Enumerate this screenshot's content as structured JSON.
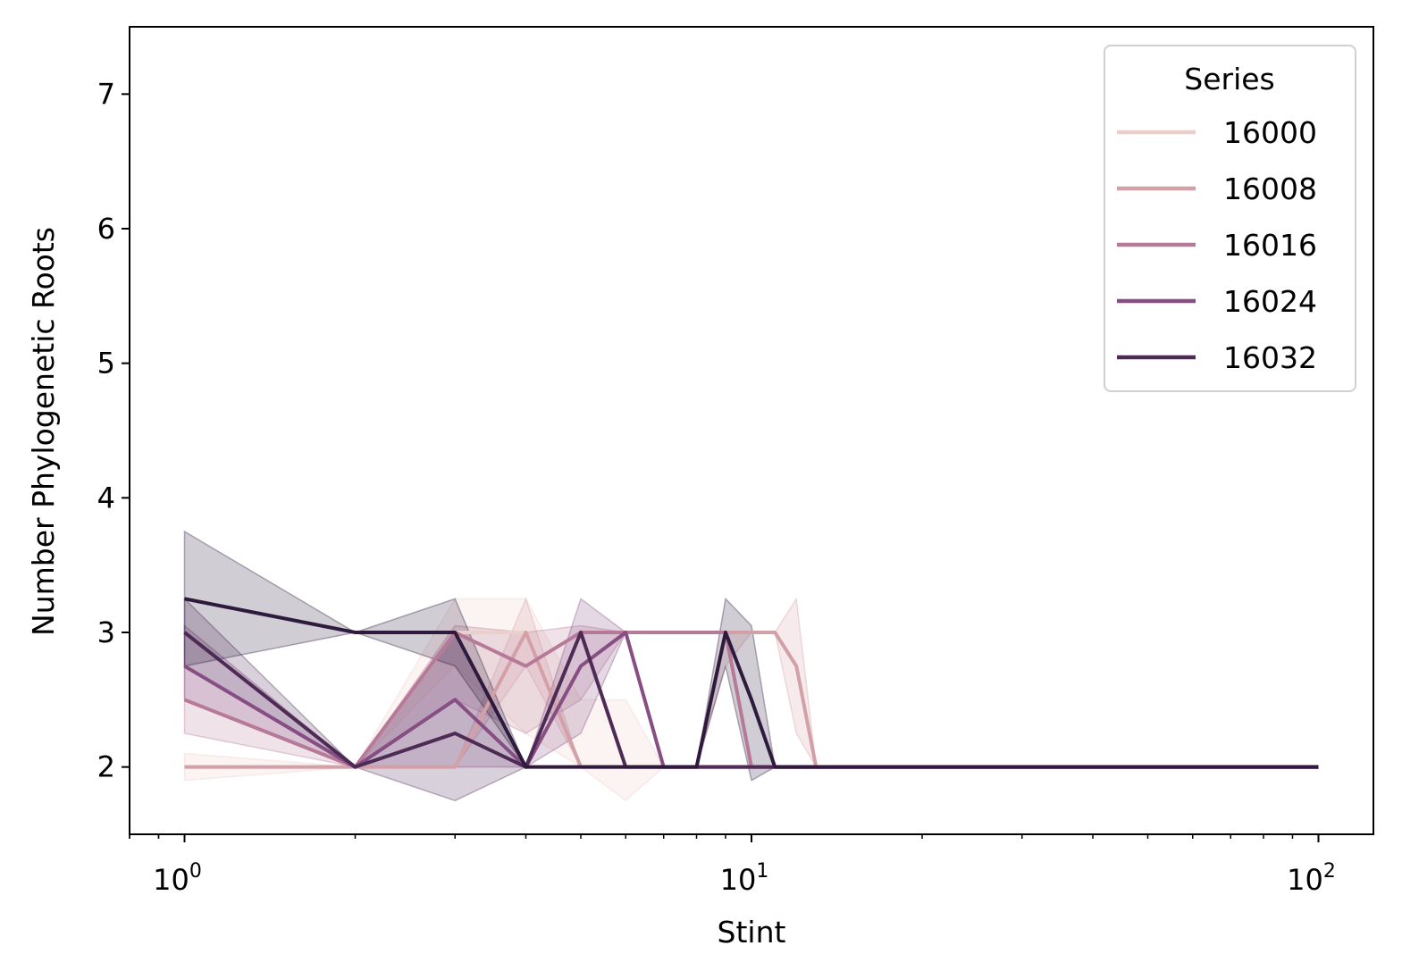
{
  "chart_data": {
    "type": "line",
    "xlabel": "Stint",
    "ylabel": "Number Phylogenetic Roots",
    "xscale": "log",
    "xlim": [
      0.8,
      125
    ],
    "ylim": [
      1.5,
      7.5
    ],
    "x_ticks": [
      {
        "value": 1,
        "base": "10",
        "exp": "0"
      },
      {
        "value": 10,
        "base": "10",
        "exp": "1"
      },
      {
        "value": 100,
        "base": "10",
        "exp": "2"
      }
    ],
    "y_ticks": [
      "2",
      "3",
      "4",
      "5",
      "6",
      "7"
    ],
    "legend": {
      "title": "Series",
      "position": "top-right"
    },
    "series": [
      {
        "name": "16000",
        "color": "#ebcfca",
        "x": [
          1,
          2,
          3,
          4,
          5,
          6,
          7,
          8,
          9,
          10,
          11,
          12,
          13,
          14,
          15,
          20,
          30,
          40,
          50,
          60,
          70,
          80,
          90,
          100
        ],
        "y": [
          2,
          2,
          3,
          3,
          2,
          2,
          2,
          2,
          2,
          2,
          2,
          2,
          2,
          2,
          2,
          2,
          2,
          2,
          2,
          2,
          2,
          2,
          2,
          2
        ],
        "lo": [
          1.9,
          2,
          2.75,
          2.25,
          2,
          1.75,
          2,
          2,
          2,
          2,
          2,
          2,
          2,
          2,
          2,
          2,
          2,
          2,
          2,
          2,
          2,
          2,
          2,
          2
        ],
        "hi": [
          2.1,
          2,
          3.25,
          3.25,
          2.5,
          2.5,
          2,
          2,
          2,
          2,
          2,
          2,
          2,
          2,
          2,
          2,
          2,
          2,
          2,
          2,
          2,
          2,
          2,
          2
        ]
      },
      {
        "name": "16008",
        "color": "#d4a0a8",
        "x": [
          1,
          2,
          3,
          4,
          5,
          6,
          7,
          8,
          9,
          10,
          11,
          12,
          13,
          14,
          15,
          20,
          30,
          40,
          50,
          60,
          70,
          80,
          90,
          100
        ],
        "y": [
          2,
          2,
          2,
          3,
          2,
          2,
          2,
          2,
          3,
          3,
          3,
          2.75,
          2,
          2,
          2,
          2,
          2,
          2,
          2,
          2,
          2,
          2,
          2,
          2
        ],
        "lo": [
          2,
          2,
          2,
          2.75,
          2,
          2,
          2,
          2,
          2.75,
          3,
          3,
          2.25,
          2,
          2,
          2,
          2,
          2,
          2,
          2,
          2,
          2,
          2,
          2,
          2
        ],
        "hi": [
          2,
          2,
          2,
          3.25,
          2,
          2,
          2,
          2,
          3,
          3,
          3,
          3.25,
          2,
          2,
          2,
          2,
          2,
          2,
          2,
          2,
          2,
          2,
          2,
          2
        ]
      },
      {
        "name": "16016",
        "color": "#b67a98",
        "x": [
          1,
          2,
          3,
          4,
          5,
          6,
          7,
          8,
          9,
          10,
          11,
          12,
          13,
          14,
          15,
          20,
          30,
          40,
          50,
          60,
          70,
          80,
          90,
          100
        ],
        "y": [
          2.5,
          2,
          3,
          2.75,
          3,
          3,
          3,
          3,
          3,
          2,
          2,
          2,
          2,
          2,
          2,
          2,
          2,
          2,
          2,
          2,
          2,
          2,
          2,
          2
        ],
        "lo": [
          2.25,
          2,
          2.5,
          2.25,
          2.5,
          3,
          3,
          3,
          3,
          2,
          2,
          2,
          2,
          2,
          2,
          2,
          2,
          2,
          2,
          2,
          2,
          2,
          2,
          2
        ],
        "hi": [
          2.75,
          2,
          3.05,
          3,
          3.05,
          3,
          3,
          3,
          3,
          2,
          2,
          2,
          2,
          2,
          2,
          2,
          2,
          2,
          2,
          2,
          2,
          2,
          2,
          2
        ]
      },
      {
        "name": "16024",
        "color": "#864e82",
        "x": [
          1,
          2,
          3,
          4,
          5,
          6,
          7,
          8,
          9,
          10,
          11,
          12,
          13,
          14,
          15,
          20,
          30,
          40,
          50,
          60,
          70,
          80,
          90,
          100
        ],
        "y": [
          2.75,
          2,
          2.5,
          2,
          2.75,
          3,
          2,
          2,
          2,
          2,
          2,
          2,
          2,
          2,
          2,
          2,
          2,
          2,
          2,
          2,
          2,
          2,
          2,
          2
        ],
        "lo": [
          2.5,
          2,
          2,
          2,
          2.25,
          3,
          2,
          2,
          2,
          2,
          2,
          2,
          2,
          2,
          2,
          2,
          2,
          2,
          2,
          2,
          2,
          2,
          2,
          2
        ],
        "hi": [
          3.05,
          2,
          3,
          2,
          3.25,
          3,
          2,
          2,
          2,
          2,
          2,
          2,
          2,
          2,
          2,
          2,
          2,
          2,
          2,
          2,
          2,
          2,
          2,
          2
        ]
      },
      {
        "name": "16032",
        "color": "#4d2b55",
        "x": [
          1,
          2,
          3,
          4,
          5,
          6,
          7,
          8,
          9,
          10,
          11,
          12,
          13,
          14,
          15,
          20,
          30,
          40,
          50,
          60,
          70,
          80,
          90,
          100
        ],
        "y": [
          3,
          2,
          2.25,
          2,
          3,
          2,
          2,
          2,
          2,
          2,
          2,
          2,
          2,
          2,
          2,
          2,
          2,
          2,
          2,
          2,
          2,
          2,
          2,
          2
        ],
        "lo": [
          2.75,
          2,
          1.75,
          2,
          3,
          2,
          2,
          2,
          2,
          2,
          2,
          2,
          2,
          2,
          2,
          2,
          2,
          2,
          2,
          2,
          2,
          2,
          2,
          2
        ],
        "hi": [
          3.25,
          2,
          3,
          2,
          3,
          2,
          2,
          2,
          2,
          2,
          2,
          2,
          2,
          2,
          2,
          2,
          2,
          2,
          2,
          2,
          2,
          2,
          2,
          2
        ]
      },
      {
        "name": "",
        "color": "#2d1a3d",
        "x": [
          1,
          2,
          3,
          4,
          5,
          6,
          7,
          8,
          9,
          10,
          11,
          12,
          13,
          14,
          15,
          20,
          30,
          40,
          50,
          60,
          70,
          80,
          90,
          100
        ],
        "y": [
          3.25,
          3,
          3,
          2,
          2,
          2,
          2,
          2,
          3,
          2.5,
          2,
          2,
          2,
          2,
          2,
          2,
          2,
          2,
          2,
          2,
          2,
          2,
          2,
          2
        ],
        "lo": [
          2.75,
          3,
          2.75,
          2,
          2,
          2,
          2,
          2,
          2.75,
          1.9,
          2,
          2,
          2,
          2,
          2,
          2,
          2,
          2,
          2,
          2,
          2,
          2,
          2,
          2
        ],
        "hi": [
          3.75,
          3,
          3.25,
          2,
          2,
          2,
          2,
          2,
          3.25,
          3.05,
          2,
          2,
          2,
          2,
          2,
          2,
          2,
          2,
          2,
          2,
          2,
          2,
          2,
          2
        ]
      }
    ]
  }
}
